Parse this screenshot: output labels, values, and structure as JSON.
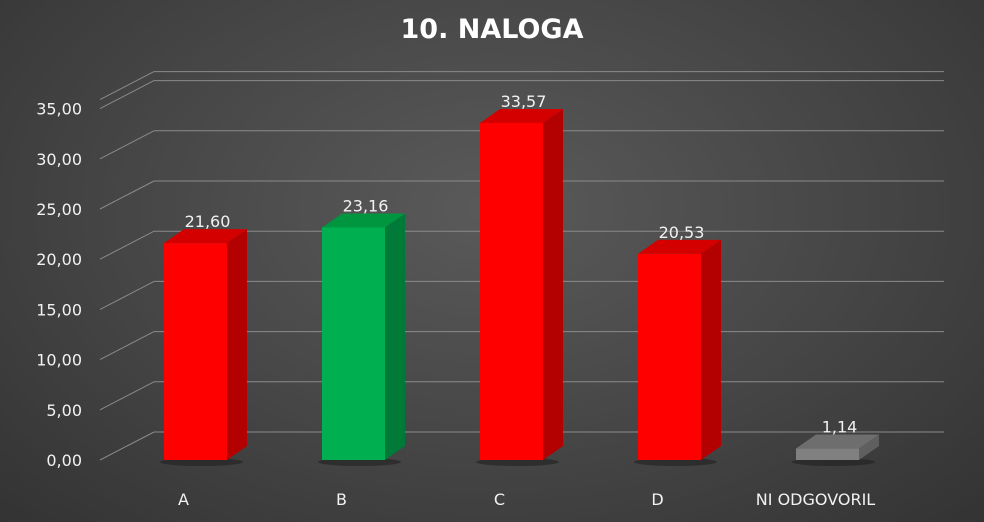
{
  "chart_data": {
    "type": "bar",
    "title": "10. NALOGA",
    "categories": [
      "A",
      "B",
      "C",
      "D",
      "NI ODGOVORIL"
    ],
    "values": [
      21.6,
      23.16,
      33.57,
      20.53,
      1.14
    ],
    "value_labels": [
      "21,60",
      "23,16",
      "33,57",
      "20,53",
      "1,14"
    ],
    "ylim": [
      0,
      35
    ],
    "yticks": [
      0,
      5,
      10,
      15,
      20,
      25,
      30,
      35
    ],
    "ytick_labels": [
      "0,00",
      "5,00",
      "10,00",
      "15,00",
      "20,00",
      "25,00",
      "30,00",
      "35,00"
    ],
    "grid": true,
    "bar_colors": {
      "front": [
        "#ff0000",
        "#00b050",
        "#ff0000",
        "#ff0000",
        "#808080"
      ],
      "side": [
        "#b30000",
        "#007a38",
        "#b30000",
        "#b30000",
        "#5f5f5f"
      ],
      "top": [
        "#d40000",
        "#00963f",
        "#d40000",
        "#d40000",
        "#6e6e6e"
      ]
    },
    "background": "#4a4a4a"
  }
}
